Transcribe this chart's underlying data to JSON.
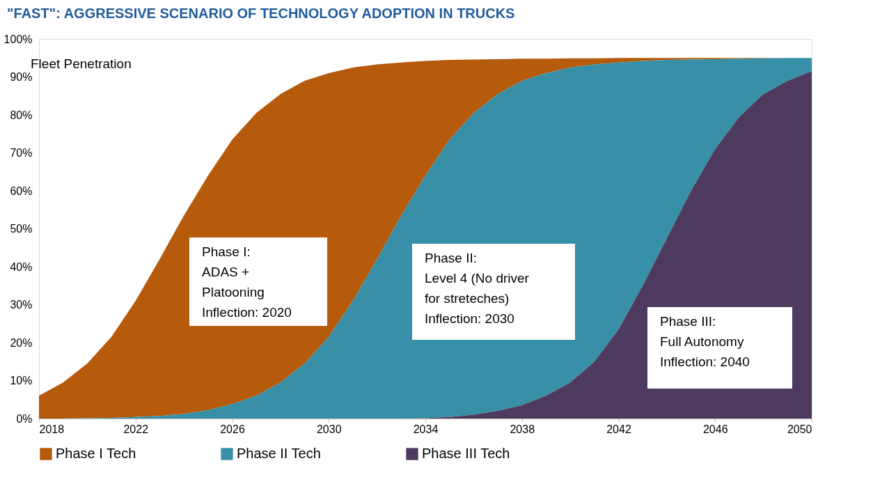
{
  "chart_data": {
    "type": "area",
    "title": "\"FAST\": AGGRESSIVE SCENARIO OF TECHNOLOGY ADOPTION IN TRUCKS",
    "ylabel": "Fleet Penetration",
    "x": [
      2018,
      2019,
      2020,
      2021,
      2022,
      2023,
      2024,
      2025,
      2026,
      2027,
      2028,
      2029,
      2030,
      2031,
      2032,
      2033,
      2034,
      2035,
      2036,
      2037,
      2038,
      2039,
      2040,
      2041,
      2042,
      2043,
      2044,
      2045,
      2046,
      2047,
      2048,
      2049,
      2050
    ],
    "series": [
      {
        "name": "Phase I Tech",
        "color": "#b65a0b",
        "values": [
          6,
          9.5,
          14.5,
          21.5,
          31,
          42,
          53.5,
          64,
          73.5,
          80.5,
          85.5,
          89,
          91,
          92.5,
          93.3,
          93.8,
          94.2,
          94.5,
          94.6,
          94.7,
          94.8,
          94.8,
          94.9,
          94.9,
          95,
          95,
          95,
          95,
          95,
          95,
          95,
          95,
          95
        ]
      },
      {
        "name": "Phase II Tech",
        "color": "#3790a8",
        "values": [
          null,
          0,
          0.1,
          0.2,
          0.4,
          0.7,
          1.2,
          2.2,
          3.8,
          6,
          9.5,
          14.5,
          21.5,
          31,
          42,
          53.5,
          64,
          73.5,
          80.5,
          85.5,
          89,
          91,
          92.5,
          93.3,
          93.8,
          94.2,
          94.5,
          94.6,
          94.7,
          94.8,
          94.9,
          95,
          95
        ]
      },
      {
        "name": "Phase III Tech",
        "color": "#4e3a5e",
        "values": [
          0,
          0,
          0,
          0,
          0,
          0,
          0,
          0,
          0,
          0,
          0,
          0,
          0,
          0,
          0,
          0,
          0.1,
          0.4,
          1,
          2,
          3.5,
          6,
          9.5,
          15,
          23.5,
          35,
          47.5,
          60,
          71,
          79.5,
          85.5,
          89,
          91.5
        ]
      }
    ],
    "xlim": [
      2018,
      2050
    ],
    "xticks": [
      2018,
      2022,
      2026,
      2030,
      2034,
      2038,
      2042,
      2046,
      2050
    ],
    "ylim": [
      0,
      100
    ],
    "yticks": [
      {
        "value": 0,
        "label": "0%"
      },
      {
        "value": 10,
        "label": "10%"
      },
      {
        "value": 20,
        "label": "20%"
      },
      {
        "value": 30,
        "label": "30%"
      },
      {
        "value": 40,
        "label": "40%"
      },
      {
        "value": 50,
        "label": "50%"
      },
      {
        "value": 60,
        "label": "60%"
      },
      {
        "value": 70,
        "label": "70%"
      },
      {
        "value": 80,
        "label": "80%"
      },
      {
        "value": 90,
        "label": "90%"
      },
      {
        "value": 100,
        "label": "100%"
      }
    ],
    "annotations": [
      "Phase I:\nADAS +\nPlatooning\nInflection: 2020",
      "Phase II:\nLevel 4 (No driver\nfor streteches)\nInflection: 2030",
      "Phase III:\nFull Autonomy\nInflection: 2040"
    ],
    "grid": false,
    "legend": "bottom"
  }
}
